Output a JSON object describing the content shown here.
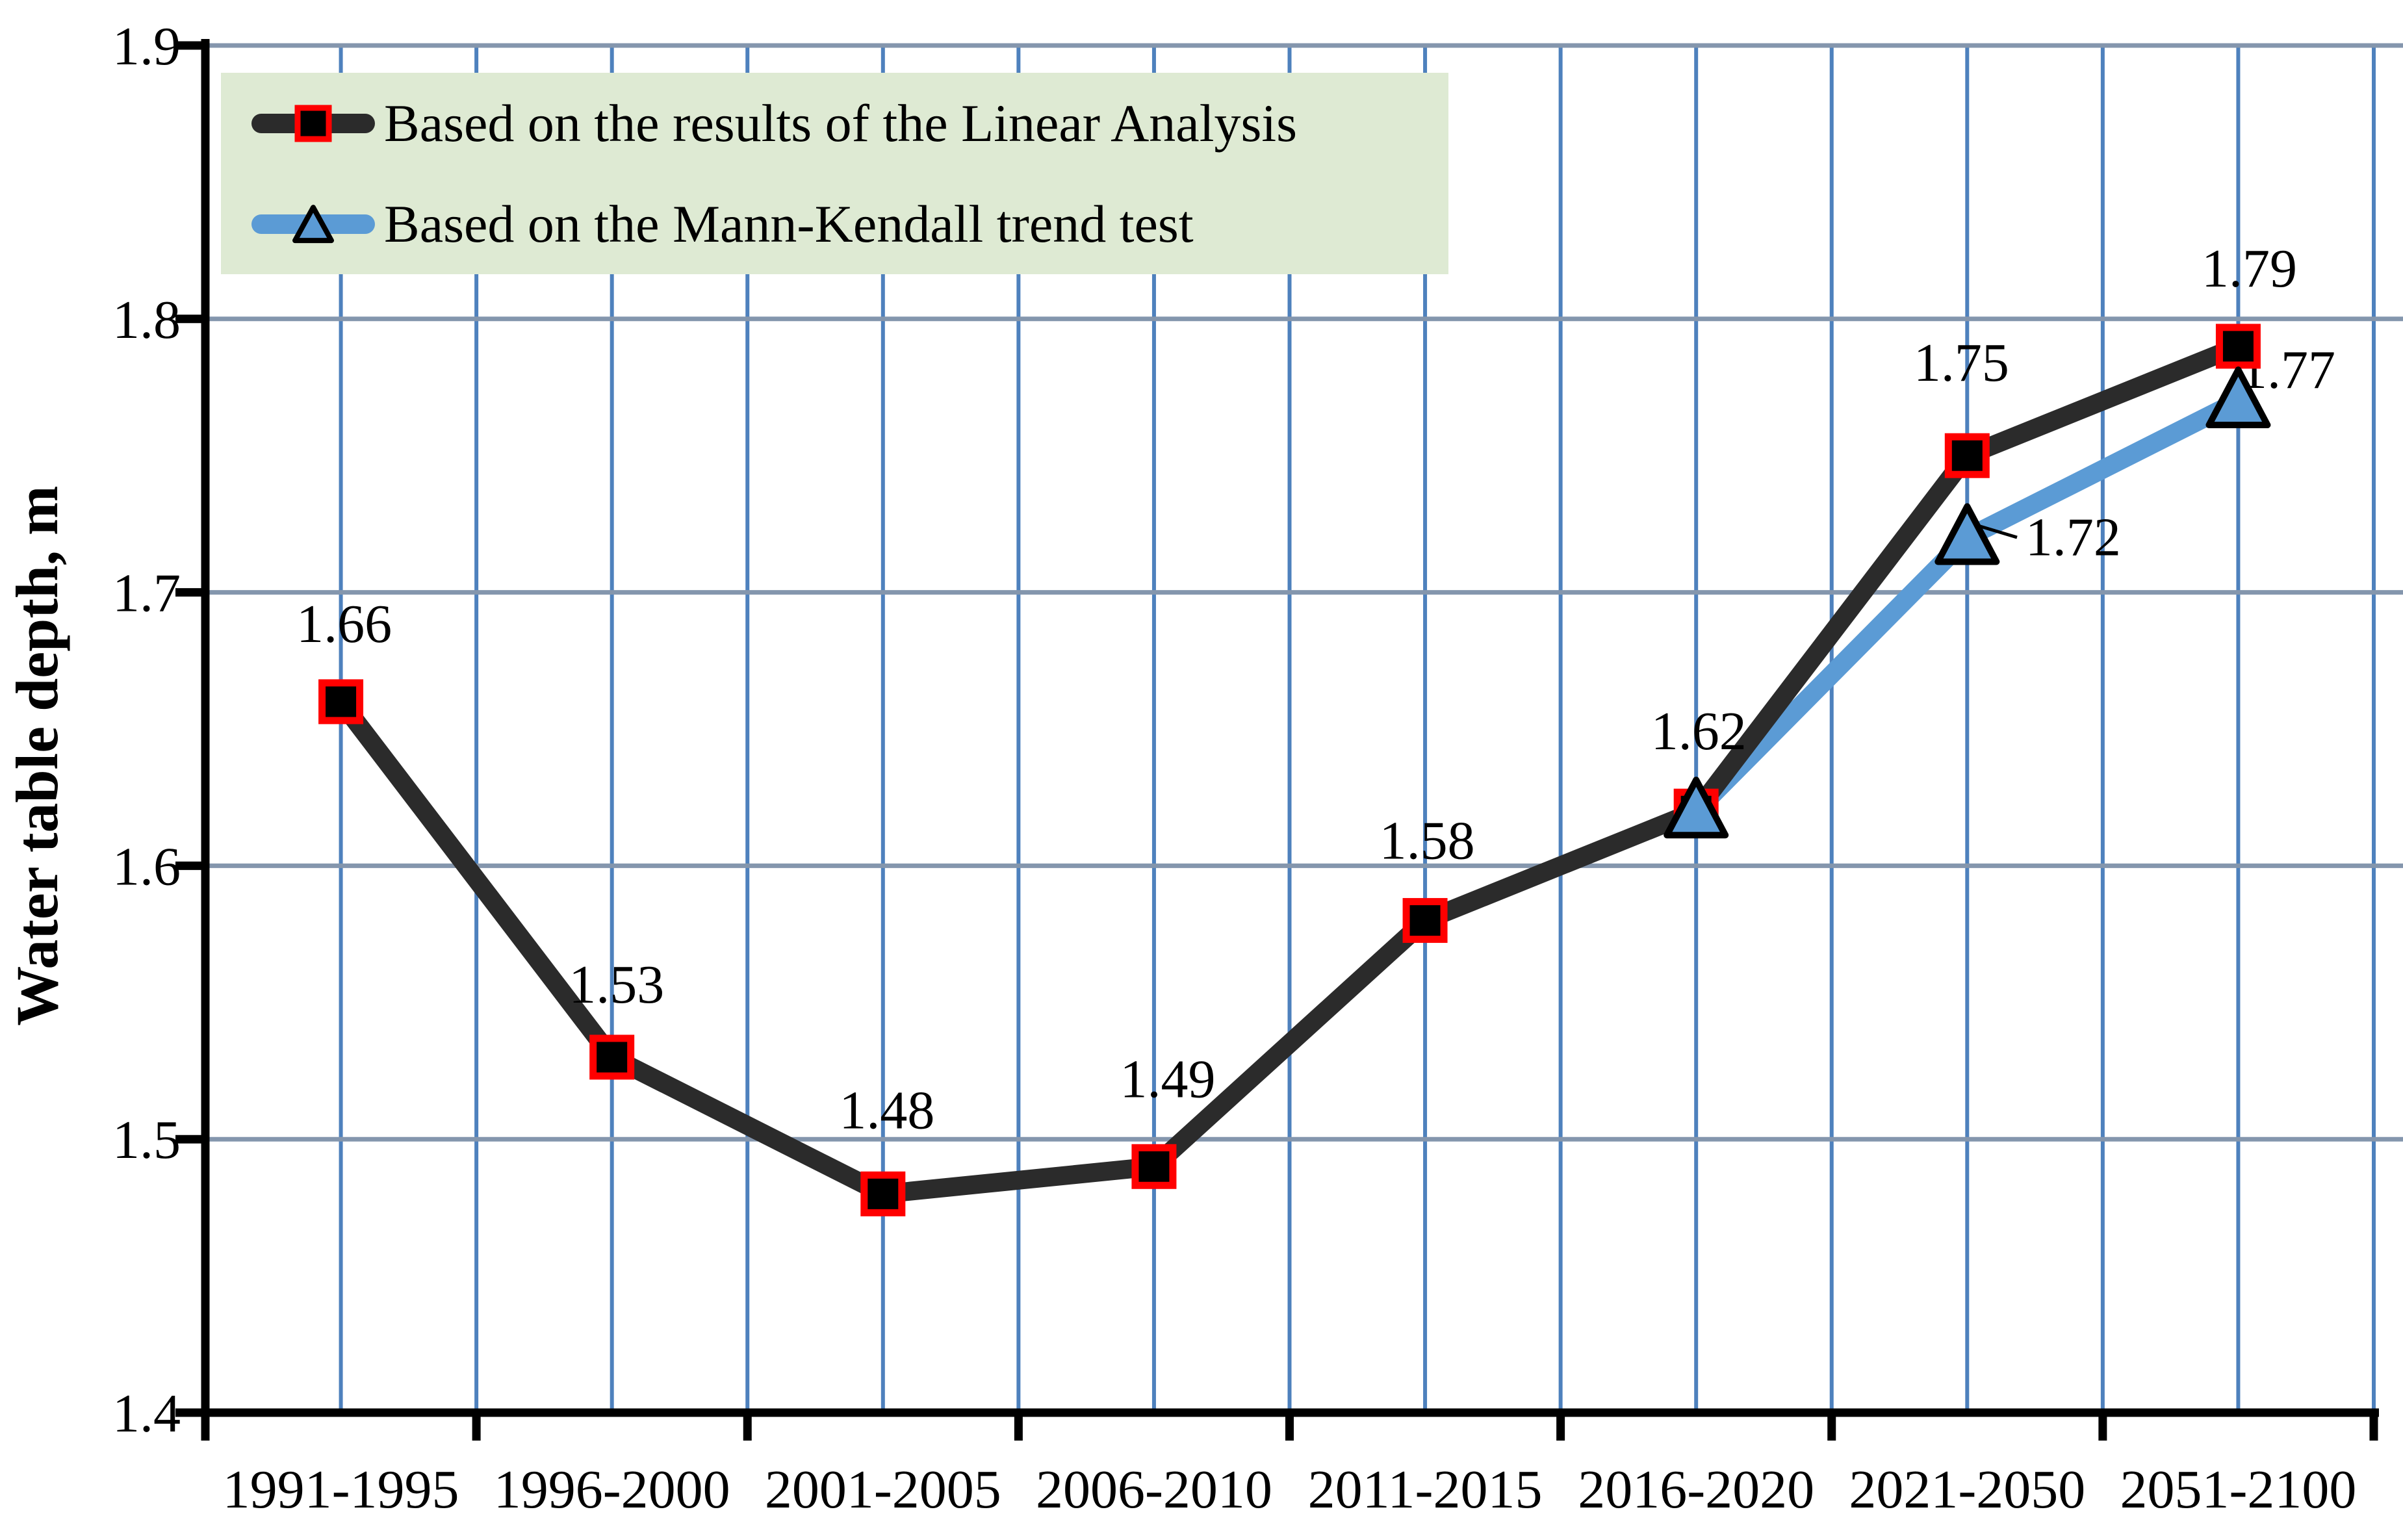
{
  "figure_type": "line chart",
  "y_axis": {
    "title": "Water table depth, m",
    "tick_labels": [
      "1.9",
      "1.8",
      "1.7",
      "1.6",
      "1.5",
      "1.4"
    ],
    "min": 1.4,
    "max": 1.9,
    "tick_step": 0.1
  },
  "x_axis": {
    "categories": [
      "1991-1995",
      "1996-2000",
      "2001-2005",
      "2006-2010",
      "2011-2015",
      "2016-2020",
      "2021-2050",
      "2051-2100"
    ]
  },
  "legend": {
    "items": [
      {
        "label": "Based on the results of the Linear Analysis",
        "marker": "square",
        "line_color": "#2b2b2b"
      },
      {
        "label": "Based on the Mann-Kendall trend test",
        "marker": "triangle",
        "line_color": "#5b9bd5"
      }
    ]
  },
  "chart_data": {
    "type": "line",
    "title": "",
    "xlabel": "",
    "ylabel": "Water table depth, m",
    "ylim": [
      1.4,
      1.9
    ],
    "grid": {
      "horizontal": true,
      "vertical": true
    },
    "legend_position": "top-left",
    "categories": [
      "1991-1995",
      "1996-2000",
      "2001-2005",
      "2006-2010",
      "2011-2015",
      "2016-2020",
      "2021-2050",
      "2051-2100"
    ],
    "series": [
      {
        "name": "Based on the results of the Linear Analysis",
        "key": "linear-analysis",
        "marker": "square",
        "line_color": "#2b2b2b",
        "marker_fill": "#000000",
        "marker_border": "#ff0000",
        "values": [
          1.66,
          1.53,
          1.48,
          1.49,
          1.58,
          1.62,
          1.75,
          1.79
        ],
        "point_labels": [
          "1.66",
          "1.53",
          "1.48",
          "1.49",
          "1.58",
          "1.62",
          "1.75",
          "1.79"
        ]
      },
      {
        "name": "Based on the Mann-Kendall trend test",
        "key": "mann-kendall",
        "marker": "triangle",
        "line_color": "#5b9bd5",
        "marker_fill": "#5b9bd5",
        "marker_border": "#000000",
        "values": [
          null,
          null,
          null,
          null,
          null,
          1.62,
          1.72,
          1.77
        ],
        "point_labels": [
          null,
          null,
          null,
          null,
          null,
          null,
          "1.72",
          "1.77"
        ]
      }
    ]
  },
  "colors": {
    "background": "#ffffff",
    "vertical_grid": "#4e81bd",
    "horizontal_grid": "#8496ad",
    "axis": "#000000",
    "legend_background": "#deead3",
    "series_linear": "#2b2b2b",
    "series_mann_kendall": "#5b9bd5",
    "marker_border_red": "#ff0000",
    "label_text": "#000000"
  }
}
